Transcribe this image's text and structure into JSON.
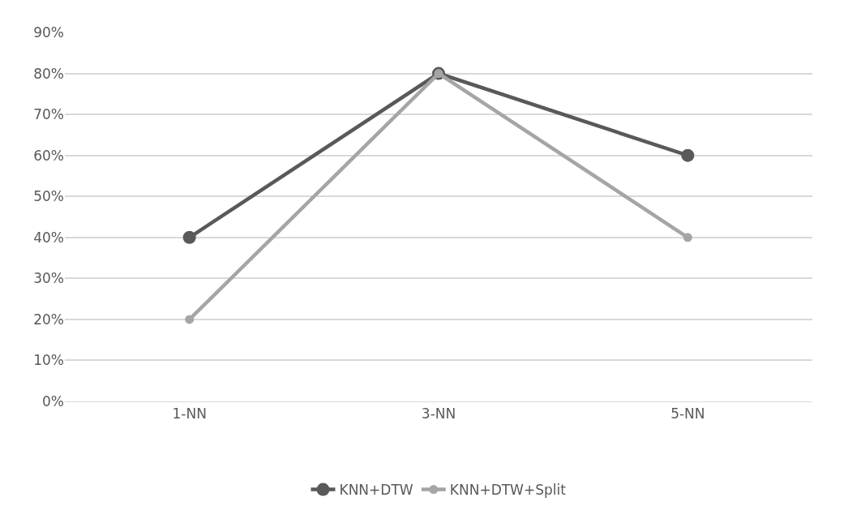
{
  "chart_data": {
    "type": "line",
    "categories": [
      "1-NN",
      "3-NN",
      "5-NN"
    ],
    "series": [
      {
        "name": "KNN+DTW",
        "color": "#595959",
        "values": [
          40,
          80,
          60
        ]
      },
      {
        "name": "KNN+DTW+Split",
        "color": "#a5a5a5",
        "values": [
          20,
          80,
          40
        ]
      }
    ],
    "ylim": [
      0,
      90
    ],
    "yticks": [
      {
        "value": 0,
        "label": "0%"
      },
      {
        "value": 10,
        "label": "10%"
      },
      {
        "value": 20,
        "label": "20%"
      },
      {
        "value": 30,
        "label": "30%"
      },
      {
        "value": 40,
        "label": "40%"
      },
      {
        "value": 50,
        "label": "50%"
      },
      {
        "value": 60,
        "label": "60%"
      },
      {
        "value": 70,
        "label": "70%"
      },
      {
        "value": 80,
        "label": "80%"
      },
      {
        "value": 90,
        "label": "90%"
      }
    ],
    "grid": "y",
    "legend": "bottom",
    "marker": "circle",
    "line_style": "solid"
  }
}
